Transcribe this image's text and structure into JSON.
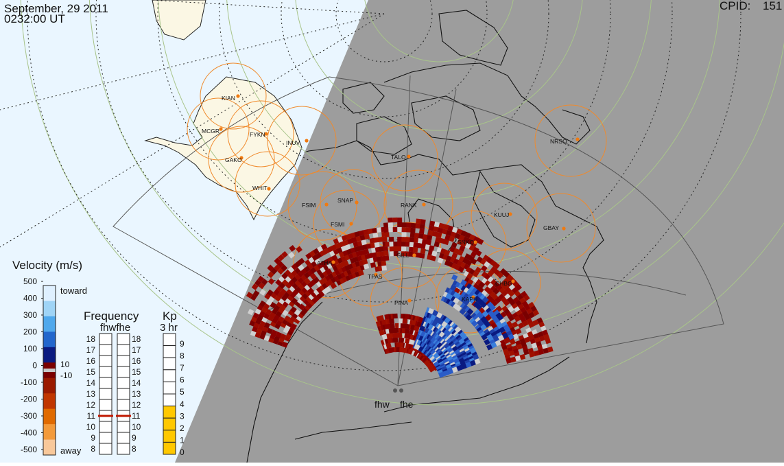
{
  "header": {
    "date": "September, 29 2011",
    "time": "0232:00 UT",
    "cpid_label": "CPID:",
    "cpid_value": "151"
  },
  "radars": [
    "fhw",
    "fhe"
  ],
  "stations": [
    {
      "code": "KIAN"
    },
    {
      "code": "MCGR"
    },
    {
      "code": "FYKN"
    },
    {
      "code": "INUV"
    },
    {
      "code": "GAKO"
    },
    {
      "code": "WHIT"
    },
    {
      "code": "TALO"
    },
    {
      "code": "NRSQ"
    },
    {
      "code": "FSIM"
    },
    {
      "code": "SNAP"
    },
    {
      "code": "RANK"
    },
    {
      "code": "FSMI"
    },
    {
      "code": "KUUJ"
    },
    {
      "code": "GBAY"
    },
    {
      "code": "SNKQ"
    },
    {
      "code": "ATHA"
    },
    {
      "code": "GILL"
    },
    {
      "code": "PINA"
    },
    {
      "code": "CHBG"
    },
    {
      "code": "KAPU"
    },
    {
      "code": "TPAS"
    }
  ],
  "velocity_legend": {
    "title": "Velocity (m/s)",
    "ticks": [
      "500",
      "400",
      "300",
      "200",
      "100",
      "0",
      "-100",
      "-200",
      "-300",
      "-400",
      "-500"
    ],
    "toward_label": "toward",
    "away_label": "away",
    "threshold_pos": "10",
    "threshold_neg": "-10",
    "colors": [
      "#dff0ff",
      "#9fd4f6",
      "#4fa8ec",
      "#2266cc",
      "#0a1a80",
      "#7a0000",
      "#9a1a00",
      "#c03600",
      "#e06a00",
      "#f39a3a",
      "#f8c89a"
    ]
  },
  "frequency_legend": {
    "title": "Frequency",
    "subtitle": "fhwfhe",
    "ticks": [
      "18",
      "17",
      "16",
      "15",
      "14",
      "13",
      "12",
      "11",
      "10",
      "9",
      "8"
    ],
    "fhw_value": 11,
    "fhe_value": 11,
    "marker_color": "#c01800"
  },
  "kp_legend": {
    "title": "Kp",
    "subtitle": "3 hr",
    "ticks": [
      "9",
      "8",
      "7",
      "6",
      "5",
      "4",
      "3",
      "2",
      "1",
      "0"
    ],
    "value": 4,
    "fill_color": "#ffc800"
  }
}
